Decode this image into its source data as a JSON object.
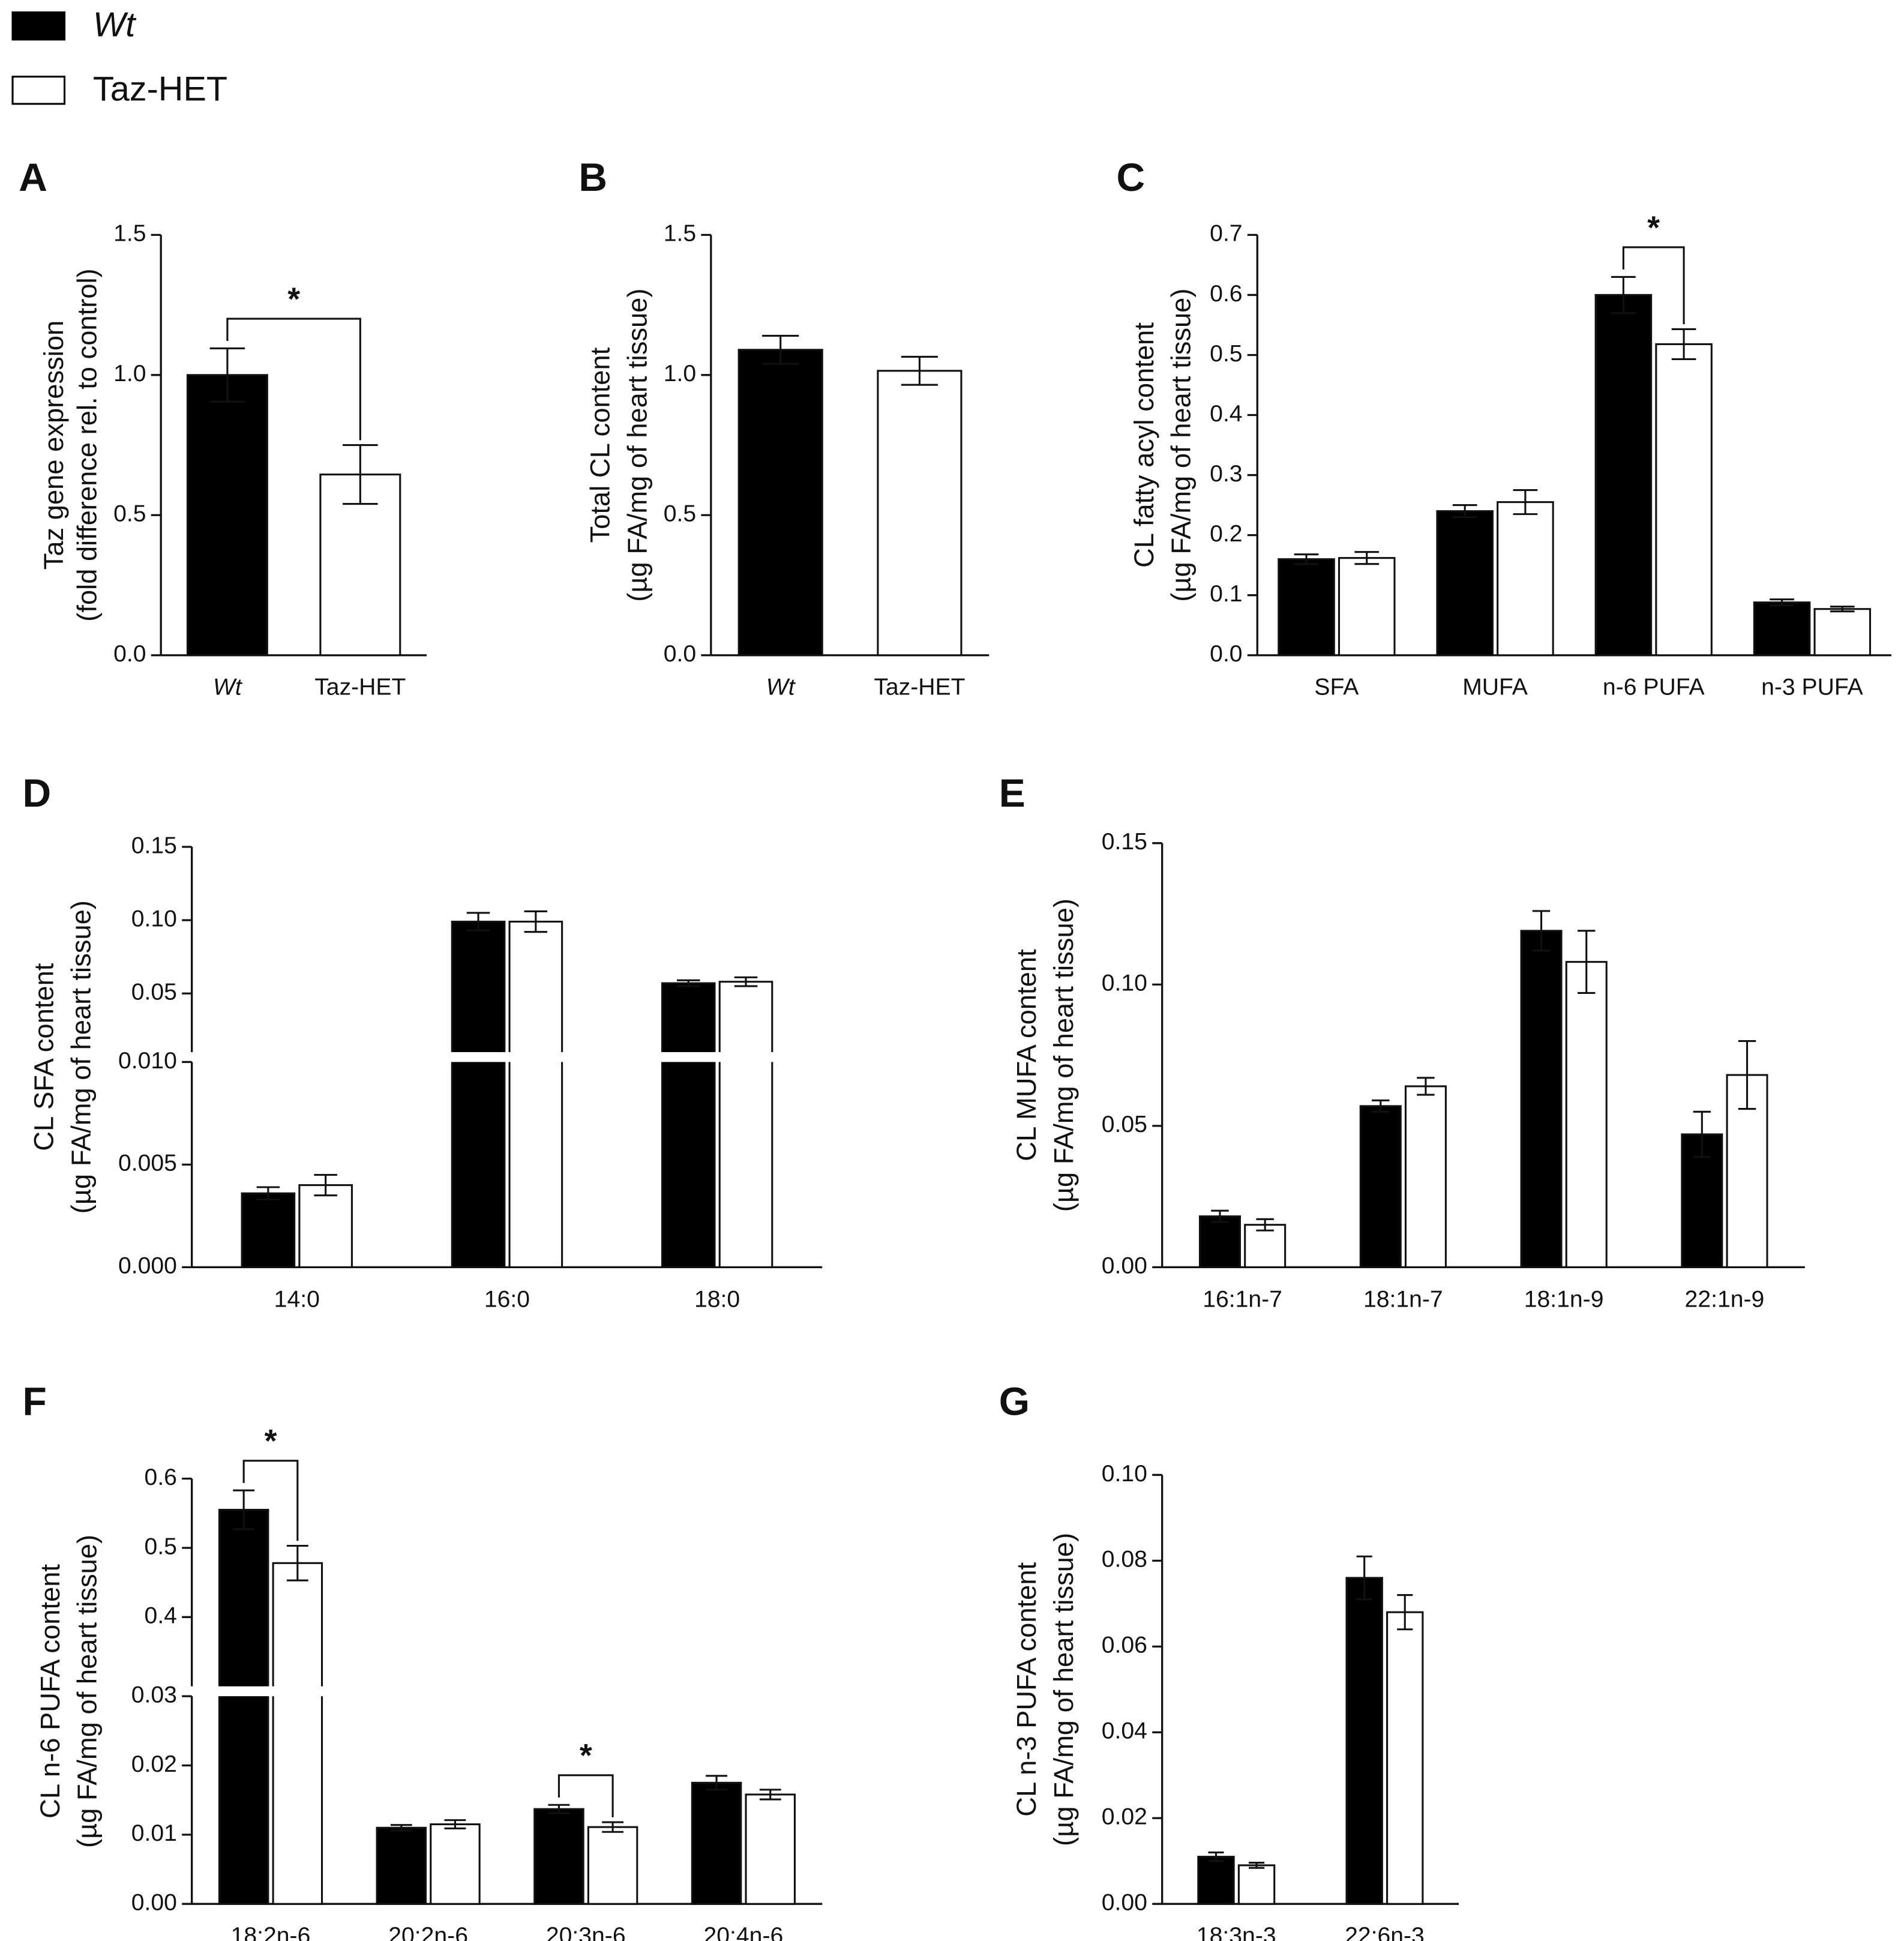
{
  "legend": {
    "series": [
      {
        "name": "Wt",
        "color": "#000000"
      },
      {
        "name": "Taz-HET",
        "color": "#ffffff"
      }
    ]
  },
  "chart_data": [
    {
      "type": "bar",
      "label": "A",
      "ylabel": [
        "Taz gene expression",
        "(fold difference rel. to control)"
      ],
      "categories": [
        "Wt",
        "Taz-HET"
      ],
      "values": [
        1.0,
        0.645
      ],
      "errors": [
        0.095,
        0.105
      ],
      "colors": [
        "#000000",
        "#ffffff"
      ],
      "ylim": [
        0,
        1.5
      ],
      "yticks": [
        {
          "value": 0,
          "label": "0.0"
        },
        0.5,
        {
          "value": 1,
          "label": "1.0"
        },
        1.5
      ],
      "significance": [
        {
          "from": 0,
          "to": 1,
          "label": "*"
        }
      ]
    },
    {
      "type": "bar",
      "label": "B",
      "ylabel": [
        "Total CL content",
        "(µg FA/mg of heart tissue)"
      ],
      "categories": [
        "Wt",
        "Taz-HET"
      ],
      "values": [
        1.09,
        1.015
      ],
      "errors": [
        0.05,
        0.05
      ],
      "colors": [
        "#000000",
        "#ffffff"
      ],
      "ylim": [
        0,
        1.5
      ],
      "yticks": [
        {
          "value": 0,
          "label": "0.0"
        },
        0.5,
        {
          "value": 1,
          "label": "1.0"
        },
        1.5
      ]
    },
    {
      "type": "grouped_bar",
      "label": "C",
      "ylabel": [
        "CL fatty acyl content",
        "(µg FA/mg of heart tissue)"
      ],
      "categories": [
        "SFA",
        "MUFA",
        "n-6 PUFA",
        "n-3 PUFA"
      ],
      "series": [
        {
          "color": "#000000",
          "values": [
            0.16,
            0.24,
            0.6,
            0.088
          ],
          "errors": [
            0.008,
            0.01,
            0.03,
            0.005
          ]
        },
        {
          "color": "#ffffff",
          "values": [
            0.162,
            0.255,
            0.518,
            0.077
          ],
          "errors": [
            0.01,
            0.02,
            0.025,
            0.004
          ]
        }
      ],
      "ylim": [
        0,
        0.7
      ],
      "yticks": [
        {
          "value": 0,
          "label": "0.0"
        },
        0.1,
        0.2,
        0.3,
        0.4,
        0.5,
        0.6,
        0.7
      ],
      "significance": [
        {
          "index": 2,
          "label": "*"
        }
      ]
    },
    {
      "type": "grouped_bar",
      "label": "D",
      "ylabel": [
        "CL SFA content",
        "(µg FA/mg of heart tissue)"
      ],
      "categories": [
        "14:0",
        "16:0",
        "18:0"
      ],
      "series": [
        {
          "color": "#000000",
          "values": [
            0.0036,
            0.099,
            0.057
          ],
          "errors": [
            0.0003,
            0.006,
            0.002
          ]
        },
        {
          "color": "#ffffff",
          "values": [
            0.004,
            0.099,
            0.058
          ],
          "errors": [
            0.0005,
            0.007,
            0.003
          ]
        }
      ],
      "segments": [
        {
          "ylim": [
            0,
            0.01
          ],
          "yticks": [
            {
              "value": 0,
              "label": "0.000"
            },
            0.005,
            {
              "value": 0.01,
              "label": "0.010"
            }
          ]
        },
        {
          "ylim": [
            0.01,
            0.15
          ],
          "yticks": [
            0.05,
            {
              "value": 0.1,
              "label": "0.10"
            },
            0.15
          ]
        }
      ]
    },
    {
      "type": "grouped_bar",
      "label": "E",
      "ylabel": [
        "CL MUFA content",
        "(µg FA/mg of heart tissue)"
      ],
      "categories": [
        "16:1n-7",
        "18:1n-7",
        "18:1n-9",
        "22:1n-9"
      ],
      "series": [
        {
          "color": "#000000",
          "values": [
            0.018,
            0.057,
            0.119,
            0.047
          ],
          "errors": [
            0.002,
            0.002,
            0.007,
            0.008
          ]
        },
        {
          "color": "#ffffff",
          "values": [
            0.015,
            0.064,
            0.108,
            0.068
          ],
          "errors": [
            0.002,
            0.003,
            0.011,
            0.012
          ]
        }
      ],
      "ylim": [
        0,
        0.15
      ],
      "yticks": [
        {
          "value": 0,
          "label": "0.00"
        },
        0.05,
        {
          "value": 0.1,
          "label": "0.10"
        },
        0.15
      ]
    },
    {
      "type": "grouped_bar",
      "label": "F",
      "ylabel": [
        "CL n-6 PUFA content",
        "(µg FA/mg of heart tissue)"
      ],
      "categories": [
        "18:2n-6",
        "20:2n-6",
        "20:3n-6",
        "20:4n-6"
      ],
      "series": [
        {
          "color": "#000000",
          "values": [
            0.555,
            0.011,
            0.0137,
            0.0175
          ],
          "errors": [
            0.028,
            0.0004,
            0.0006,
            0.001
          ]
        },
        {
          "color": "#ffffff",
          "values": [
            0.478,
            0.0115,
            0.0111,
            0.0158
          ],
          "errors": [
            0.025,
            0.0006,
            0.0007,
            0.0007
          ]
        }
      ],
      "segments": [
        {
          "ylim": [
            0,
            0.03
          ],
          "yticks": [
            {
              "value": 0,
              "label": "0.00"
            },
            0.01,
            0.02,
            0.03
          ]
        },
        {
          "ylim": [
            0.3,
            0.6
          ],
          "yticks": [
            0.4,
            0.5,
            0.6
          ]
        }
      ],
      "significance": [
        {
          "index": 0,
          "label": "*"
        },
        {
          "index": 2,
          "label": "*"
        }
      ]
    },
    {
      "type": "grouped_bar",
      "label": "G",
      "ylabel": [
        "CL n-3 PUFA content",
        "(µg FA/mg of heart tissue)"
      ],
      "categories": [
        "18:3n-3",
        "22:6n-3"
      ],
      "series": [
        {
          "color": "#000000",
          "values": [
            0.011,
            0.076
          ],
          "errors": [
            0.001,
            0.005
          ]
        },
        {
          "color": "#ffffff",
          "values": [
            0.009,
            0.068
          ],
          "errors": [
            0.0006,
            0.004
          ]
        }
      ],
      "ylim": [
        0,
        0.1
      ],
      "yticks": [
        {
          "value": 0,
          "label": "0.00"
        },
        0.02,
        0.04,
        0.06,
        0.08,
        {
          "value": 0.1,
          "label": "0.10"
        }
      ]
    }
  ]
}
